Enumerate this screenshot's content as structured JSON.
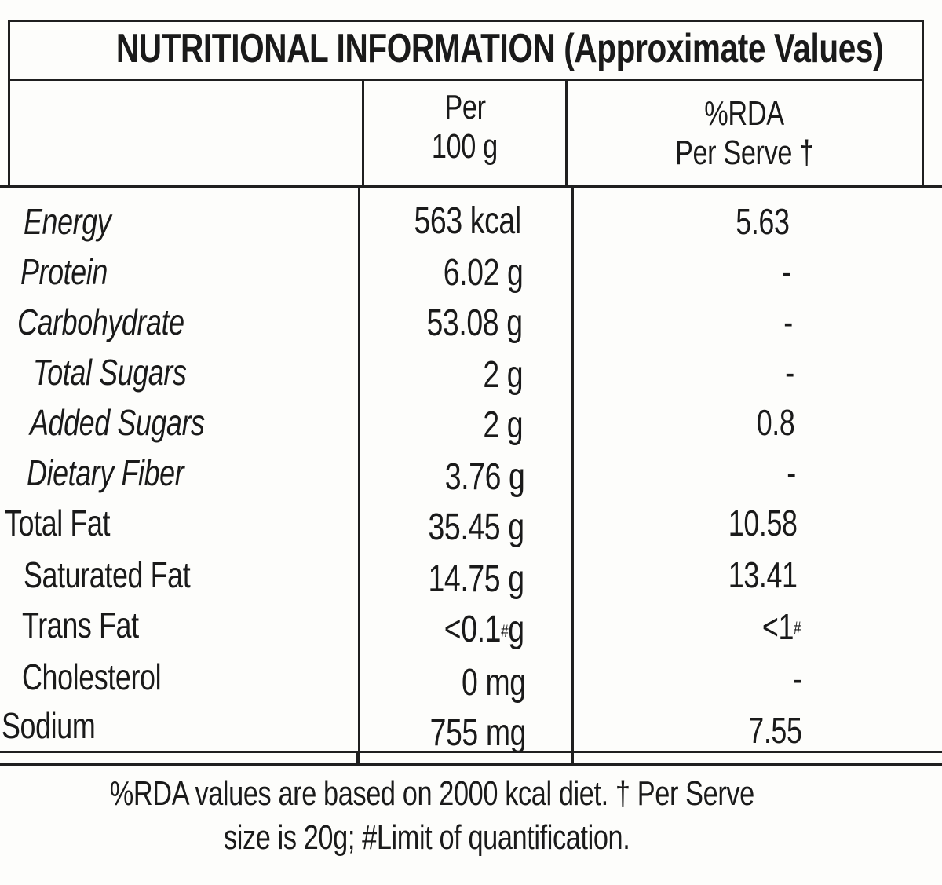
{
  "title": "NUTRITIONAL INFORMATION (Approximate Values)",
  "headers": {
    "per_100g_line1": "Per",
    "per_100g_line2": "100 g",
    "rda_line1": "%RDA",
    "rda_line2": "Per Serve †"
  },
  "rows": [
    {
      "nutrient": "Energy",
      "amount": "563 kcal",
      "rda": "5.63"
    },
    {
      "nutrient": "Protein",
      "amount": "6.02 g",
      "rda": "-"
    },
    {
      "nutrient": "Carbohydrate",
      "amount": "53.08 g",
      "rda": "-"
    },
    {
      "nutrient": "Total Sugars",
      "amount": "2 g",
      "rda": "-"
    },
    {
      "nutrient": "Added Sugars",
      "amount": "2 g",
      "rda": "0.8"
    },
    {
      "nutrient": "Dietary Fiber",
      "amount": "3.76 g",
      "rda": "-"
    },
    {
      "nutrient": "Total Fat",
      "amount": "35.45 g",
      "rda": "10.58"
    },
    {
      "nutrient": "Saturated Fat",
      "amount": "14.75 g",
      "rda": "13.41"
    },
    {
      "nutrient": "Trans Fat",
      "amount_prefix": "<0.1",
      "amount_mark": "#",
      "amount_suffix": "g",
      "rda_prefix": "<1",
      "rda_mark": "#"
    },
    {
      "nutrient": "Cholesterol",
      "amount": "0 mg",
      "rda": "-"
    },
    {
      "nutrient": "Sodium",
      "amount": "755 mg",
      "rda": "7.55"
    }
  ],
  "footnote": {
    "line1": "%RDA values are based on 2000 kcal diet. † Per Serve",
    "line2": "size is 20g; #Limit of quantification."
  }
}
